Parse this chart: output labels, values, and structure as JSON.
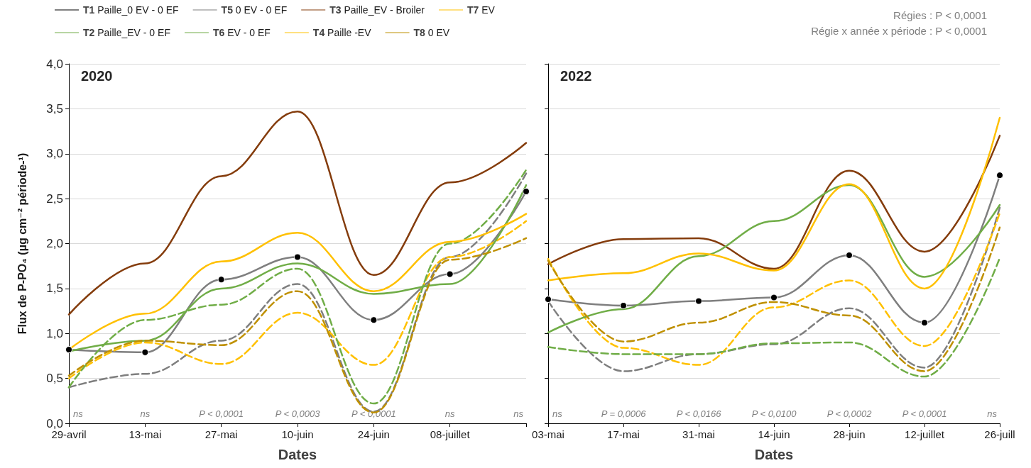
{
  "chart_data": [
    {
      "type": "line",
      "title": "2020",
      "xlabel": "Dates",
      "ylabel": "Flux de P-PO₄ (µg cm⁻² période-¹)",
      "categories": [
        "29-avril",
        "13-mai",
        "27-mai",
        "10-juin",
        "24-juin",
        "08-juillet",
        null
      ],
      "ylim": [
        0,
        4
      ],
      "yticks": [
        {
          "value": 0,
          "label": "0,0"
        },
        {
          "value": 0.5,
          "label": "0,5"
        },
        {
          "value": 1,
          "label": "1,0"
        },
        {
          "value": 1.5,
          "label": "1,5"
        },
        {
          "value": 2,
          "label": "2,0"
        },
        {
          "value": 2.5,
          "label": "2,5"
        },
        {
          "value": 3,
          "label": "3,0"
        },
        {
          "value": 3.5,
          "label": "3,5"
        },
        {
          "value": 4,
          "label": "4,0"
        }
      ],
      "grid": "y",
      "legend": "top",
      "series": [
        {
          "name": "T1 Paille_0 EV - 0 EF",
          "color": "#7f7f7f",
          "line_style": "solid",
          "marker": "circle",
          "values": [
            0.82,
            0.79,
            1.6,
            1.85,
            1.15,
            1.66,
            2.58
          ]
        },
        {
          "name": "T5 0 EV - 0 EF",
          "color": "#7f7f7f",
          "line_style": "dashed",
          "values": [
            0.4,
            0.55,
            0.92,
            1.55,
            0.13,
            1.85,
            2.78
          ]
        },
        {
          "name": "T3 Paille_EV - Broiler",
          "color": "#843c0c",
          "line_style": "solid",
          "values": [
            1.21,
            1.78,
            2.75,
            3.47,
            1.65,
            2.68,
            3.12
          ]
        },
        {
          "name": "T7 EV",
          "color": "#ffc000",
          "line_style": "dashed",
          "values": [
            0.5,
            0.9,
            0.66,
            1.23,
            0.65,
            1.85,
            2.25
          ]
        },
        {
          "name": "T2 Paille_EV - 0 EF",
          "color": "#70ad47",
          "line_style": "solid",
          "values": [
            0.8,
            0.92,
            1.5,
            1.78,
            1.44,
            1.55,
            2.65
          ]
        },
        {
          "name": "T6 EV - 0 EF",
          "color": "#70ad47",
          "line_style": "dashed",
          "values": [
            0.4,
            1.15,
            1.32,
            1.72,
            0.22,
            2.0,
            2.82
          ]
        },
        {
          "name": "T4 Paille -EV",
          "color": "#ffc000",
          "line_style": "solid",
          "values": [
            0.82,
            1.22,
            1.8,
            2.12,
            1.47,
            2.02,
            2.33
          ]
        },
        {
          "name": "T8 0 EV",
          "color": "#bf9000",
          "line_style": "dashed",
          "values": [
            0.53,
            0.92,
            0.87,
            1.47,
            0.12,
            1.82,
            2.06
          ]
        }
      ],
      "annotations": [
        "ns",
        "ns",
        "P < 0,0001",
        "P < 0,0003",
        "P < 0,0001",
        "ns",
        "ns",
        "Régies : P < 0,0001",
        "Régie x année x période : P < 0,0001"
      ]
    },
    {
      "type": "line",
      "title": "2022",
      "xlabel": "Dates",
      "categories": [
        "03-mai",
        "17-mai",
        "31-mai",
        "14-juin",
        "28-juin",
        "12-juillet",
        "26-juill"
      ],
      "ylim": [
        0,
        4
      ],
      "yticks": [
        {
          "value": 0,
          "label": null
        },
        {
          "value": 0.5,
          "label": null
        },
        {
          "value": 1,
          "label": null
        },
        {
          "value": 1.5,
          "label": null
        },
        {
          "value": 2,
          "label": null
        },
        {
          "value": 2.5,
          "label": null
        },
        {
          "value": 3,
          "label": null
        },
        {
          "value": 3.5,
          "label": null
        },
        {
          "value": 4,
          "label": null
        }
      ],
      "grid": "y",
      "tick_labels": "x",
      "series": [
        {
          "color": "#7f7f7f",
          "line_style": "solid",
          "marker": "circle",
          "values": [
            1.38,
            1.31,
            1.36,
            1.4,
            1.87,
            1.12,
            2.76
          ]
        },
        {
          "color": "#7f7f7f",
          "line_style": "dashed",
          "values": [
            1.36,
            0.58,
            0.77,
            0.88,
            1.28,
            0.62,
            2.4
          ]
        },
        {
          "color": "#843c0c",
          "line_style": "solid",
          "values": [
            1.77,
            2.05,
            2.06,
            1.72,
            2.81,
            1.91,
            3.2
          ]
        },
        {
          "color": "#ffc000",
          "line_style": "dashed",
          "values": [
            1.83,
            0.84,
            0.65,
            1.29,
            1.59,
            0.86,
            2.34
          ]
        },
        {
          "color": "#70ad47",
          "line_style": "solid",
          "values": [
            1.01,
            1.27,
            1.86,
            2.25,
            2.65,
            1.63,
            2.43
          ]
        },
        {
          "color": "#70ad47",
          "line_style": "dashed",
          "values": [
            0.85,
            0.77,
            0.77,
            0.89,
            0.9,
            0.52,
            1.84
          ]
        },
        {
          "color": "#ffc000",
          "line_style": "solid",
          "values": [
            1.59,
            1.67,
            1.89,
            1.7,
            2.66,
            1.5,
            3.4
          ]
        },
        {
          "color": "#bf9000",
          "line_style": "dashed",
          "values": [
            1.81,
            0.91,
            1.12,
            1.35,
            1.2,
            0.58,
            2.18
          ]
        }
      ],
      "annotations": [
        "ns",
        "P = 0,0006",
        "P < 0,0166",
        "P < 0,0100",
        "P < 0,0002",
        "P < 0,0001",
        "ns"
      ]
    }
  ]
}
